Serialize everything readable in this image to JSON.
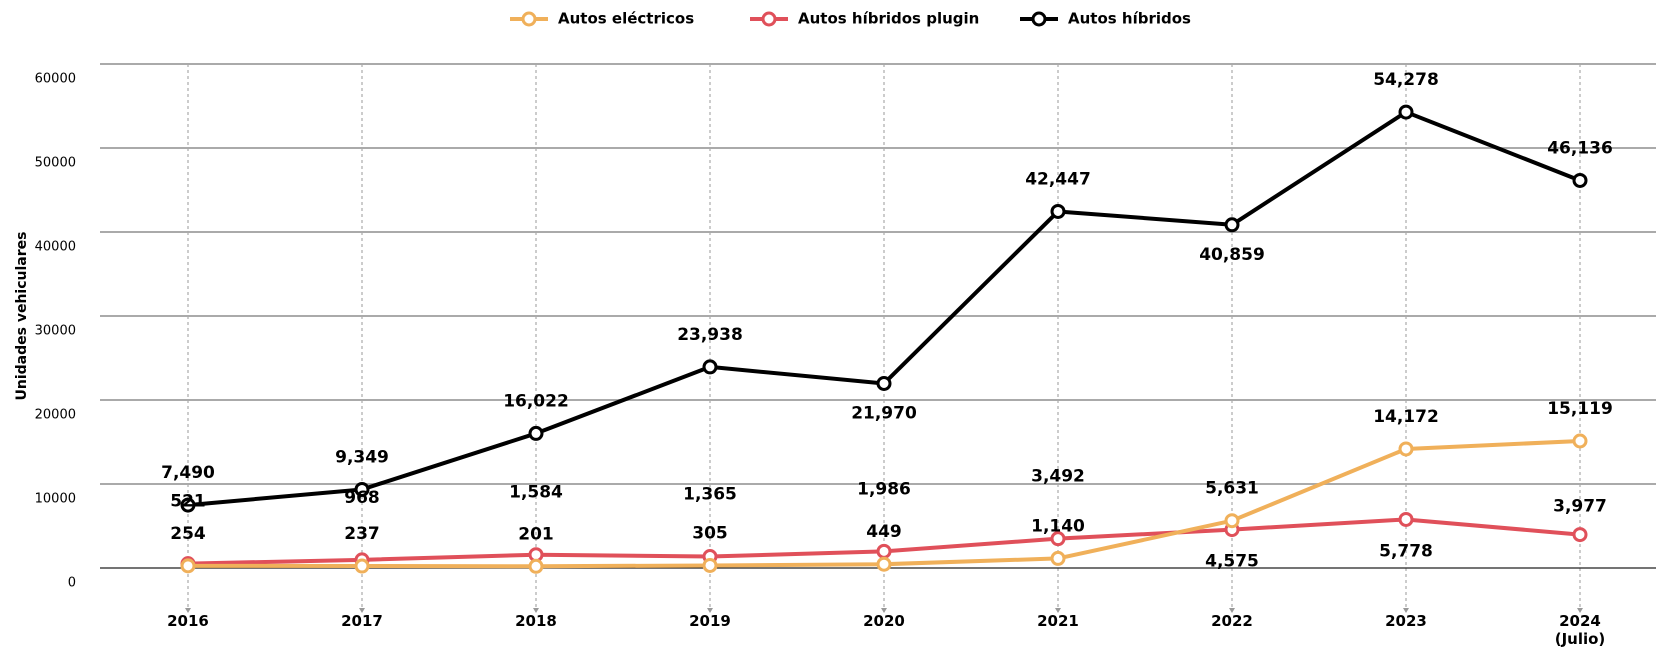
{
  "chart_data": {
    "type": "line",
    "ylabel": "Unidades vehiculares",
    "categories": [
      "2016",
      "2017",
      "2018",
      "2019",
      "2020",
      "2021",
      "2022",
      "2023",
      "2024\n(Julio)"
    ],
    "series": [
      {
        "name": "Autos eléctricos",
        "color": "#f0b05a",
        "values": [
          254,
          237,
          201,
          305,
          449,
          1140,
          5631,
          14172,
          15119
        ],
        "value_labels": [
          "254",
          "237",
          "201",
          "305",
          "449",
          "1,140",
          "5,631",
          "14,172",
          "15,119"
        ]
      },
      {
        "name": "Autos híbridos plugin",
        "color": "#e0505a",
        "values": [
          521,
          968,
          1584,
          1365,
          1986,
          3492,
          4575,
          5778,
          3977
        ],
        "value_labels": [
          "521",
          "968",
          "1,584",
          "1,365",
          "1,986",
          "3,492",
          "4,575",
          "5,778",
          "3,977"
        ]
      },
      {
        "name": "Autos híbridos",
        "color": "#000000",
        "values": [
          7490,
          9349,
          16022,
          23938,
          21970,
          42447,
          40859,
          54278,
          46136
        ],
        "value_labels": [
          "7,490",
          "9,349",
          "16,022",
          "23,938",
          "21,970",
          "42,447",
          "40,859",
          "54,278",
          "46,136"
        ]
      }
    ],
    "ylim": [
      0,
      60000
    ],
    "yticks": [
      0,
      10000,
      20000,
      30000,
      40000,
      50000,
      60000
    ],
    "grid": true,
    "legend": "top"
  }
}
